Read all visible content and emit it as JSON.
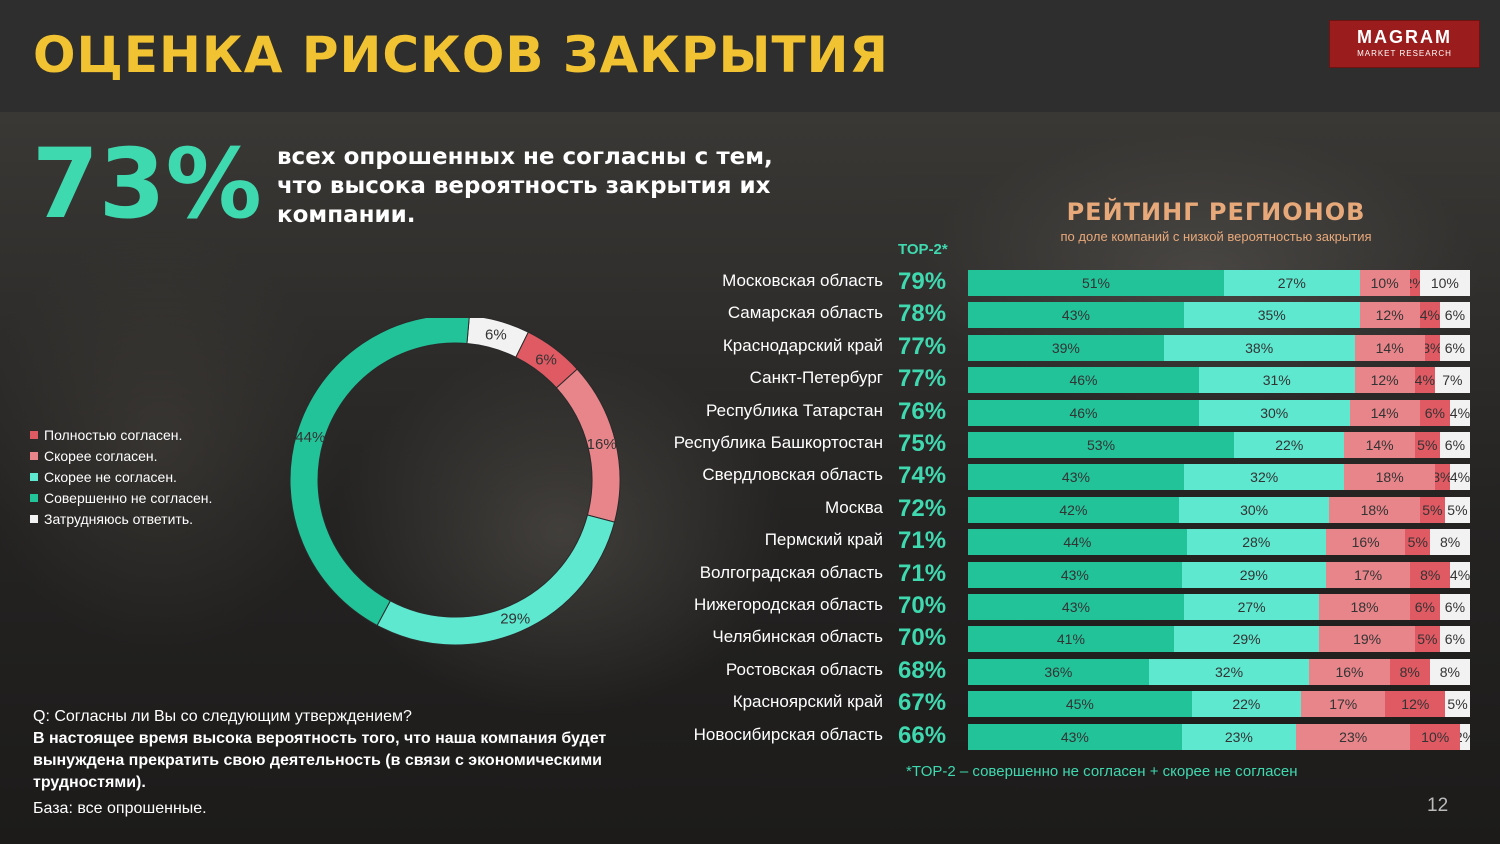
{
  "title": "ОЦЕНКА РИСКОВ ЗАКРЫТИЯ",
  "logo": {
    "line1": "MAGRAM",
    "line2": "MARKET RESEARCH"
  },
  "headline": {
    "percent": "73%",
    "text": "всех опрошенных не согласны с тем, что высока вероятность закрытия их компании."
  },
  "colors": {
    "fully_agree": "#e05a63",
    "rather_agree": "#e8858a",
    "rather_disagree": "#5ee8d0",
    "fully_disagree": "#23c39a",
    "hard_to_say": "#f2f2f2",
    "accent": "#3fd9b0",
    "title": "#f1c232"
  },
  "legend": [
    {
      "label": "Полностью согласен.",
      "color": "#e05a63"
    },
    {
      "label": "Скорее согласен.",
      "color": "#e8858a"
    },
    {
      "label": "Скорее не согласен.",
      "color": "#5ee8d0"
    },
    {
      "label": "Совершенно не согласен.",
      "color": "#23c39a"
    },
    {
      "label": "Затрудняюсь ответить.",
      "color": "#f2f2f2"
    }
  ],
  "question": {
    "q": "Q: Согласны ли Вы со следующим утверждением?",
    "statement": "В настоящее время высока вероятность того, что наша компания будет вынуждена прекратить свою деятельность (в связи с экономическими трудностями).",
    "base": "База: все опрошенные."
  },
  "ranking": {
    "title": "РЕЙТИНГ РЕГИОНОВ",
    "subtitle": "по доле компаний с низкой вероятностью закрытия",
    "top2_header": "TOP-2*",
    "footnote": "*TOP-2 – совершенно не согласен + скорее не согласен"
  },
  "page_number": "12",
  "chart_data": [
    {
      "type": "pie",
      "variant": "donut",
      "slices": [
        {
          "label": "Затрудняюсь ответить.",
          "value": 6,
          "color": "#f2f2f2",
          "display": "6%"
        },
        {
          "label": "Полностью согласен.",
          "value": 6,
          "color": "#e05a63",
          "display": "6%"
        },
        {
          "label": "Скорее согласен.",
          "value": 16,
          "color": "#e8858a",
          "display": "16%"
        },
        {
          "label": "Скорее не согласен.",
          "value": 29,
          "color": "#5ee8d0",
          "display": "29%"
        },
        {
          "label": "Совершенно не согласен.",
          "value": 44,
          "color": "#23c39a",
          "display": "44%"
        }
      ]
    },
    {
      "type": "bar",
      "orientation": "horizontal",
      "stacked": true,
      "title": "РЕЙТИНГ РЕГИОНОВ",
      "subtitle": "по доле компаний с низкой вероятностью закрытия",
      "series_order": [
        "fully_disagree",
        "rather_disagree",
        "rather_agree",
        "fully_agree",
        "hard_to_say"
      ],
      "rows": [
        {
          "region": "Московская область",
          "top2": "79%",
          "values": [
            51,
            27,
            10,
            2,
            10
          ]
        },
        {
          "region": "Самарская область",
          "top2": "78%",
          "values": [
            43,
            35,
            12,
            4,
            6
          ]
        },
        {
          "region": "Краснодарский край",
          "top2": "77%",
          "values": [
            39,
            38,
            14,
            3,
            6
          ]
        },
        {
          "region": "Санкт-Петербург",
          "top2": "77%",
          "values": [
            46,
            31,
            12,
            4,
            7
          ]
        },
        {
          "region": "Республика Татарстан",
          "top2": "76%",
          "values": [
            46,
            30,
            14,
            6,
            4
          ]
        },
        {
          "region": "Республика Башкортостан",
          "top2": "75%",
          "values": [
            53,
            22,
            14,
            5,
            6
          ]
        },
        {
          "region": "Свердловская область",
          "top2": "74%",
          "values": [
            43,
            32,
            18,
            3,
            4
          ]
        },
        {
          "region": "Москва",
          "top2": "72%",
          "values": [
            42,
            30,
            18,
            5,
            5
          ]
        },
        {
          "region": "Пермский край",
          "top2": "71%",
          "values": [
            44,
            28,
            16,
            5,
            8
          ]
        },
        {
          "region": "Волгоградская область",
          "top2": "71%",
          "values": [
            43,
            29,
            17,
            8,
            4
          ]
        },
        {
          "region": "Нижегородская область",
          "top2": "70%",
          "values": [
            43,
            27,
            18,
            6,
            6
          ]
        },
        {
          "region": "Челябинская область",
          "top2": "70%",
          "values": [
            41,
            29,
            19,
            5,
            6
          ]
        },
        {
          "region": "Ростовская область",
          "top2": "68%",
          "values": [
            36,
            32,
            16,
            8,
            8
          ]
        },
        {
          "region": "Красноярский край",
          "top2": "67%",
          "values": [
            45,
            22,
            17,
            12,
            5
          ]
        },
        {
          "region": "Новосибирская область",
          "top2": "66%",
          "values": [
            43,
            23,
            23,
            10,
            2
          ]
        }
      ]
    }
  ]
}
